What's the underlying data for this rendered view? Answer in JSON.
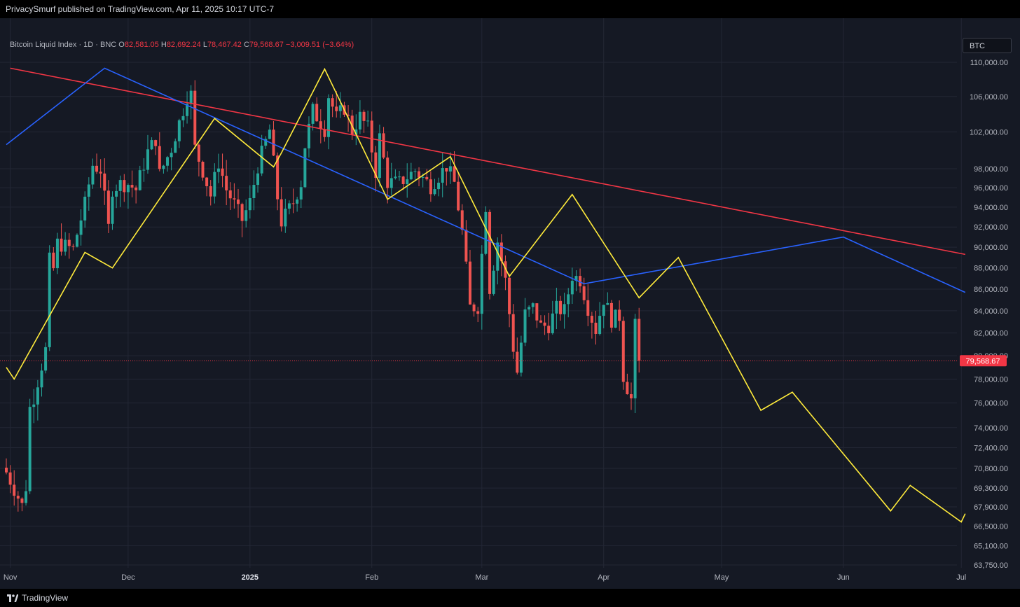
{
  "header": {
    "published": "PrivacySmurf published on TradingView.com, Apr 11, 2025 10:17 UTC-7"
  },
  "legend": {
    "name": "Bitcoin Liquid Index · 1D · BNC",
    "o_label": "O",
    "o": "82,581.05",
    "h_label": "H",
    "h": "82,692.24",
    "l_label": "L",
    "l": "78,467.42",
    "c_label": "C",
    "c": "79,568.67",
    "change": "−3,009.51 (−3.64%)"
  },
  "symbol_button": {
    "label": "BTC"
  },
  "footer": {
    "brand": "TradingView"
  },
  "colors": {
    "up": "#26a69a",
    "down": "#ef5350",
    "yellow": "#ffeb3b",
    "blue": "#2962ff",
    "red_line": "#f23645",
    "price_tag": "#f23645"
  },
  "chart_data": {
    "type": "candlestick",
    "y_scale": "log",
    "y_ticks": [
      {
        "v": 110000,
        "label": "110,000.00"
      },
      {
        "v": 106000,
        "label": "106,000.00"
      },
      {
        "v": 102000,
        "label": "102,000.00"
      },
      {
        "v": 98000,
        "label": "98,000.00"
      },
      {
        "v": 96000,
        "label": "96,000.00"
      },
      {
        "v": 94000,
        "label": "94,000.00"
      },
      {
        "v": 92000,
        "label": "92,000.00"
      },
      {
        "v": 90000,
        "label": "90,000.00"
      },
      {
        "v": 88000,
        "label": "88,000.00"
      },
      {
        "v": 86000,
        "label": "86,000.00"
      },
      {
        "v": 84000,
        "label": "84,000.00"
      },
      {
        "v": 82000,
        "label": "82,000.00"
      },
      {
        "v": 80000,
        "label": "80,000.00"
      },
      {
        "v": 78000,
        "label": "78,000.00"
      },
      {
        "v": 76000,
        "label": "76,000.00"
      },
      {
        "v": 74000,
        "label": "74,000.00"
      },
      {
        "v": 72400,
        "label": "72,400.00"
      },
      {
        "v": 70800,
        "label": "70,800.00"
      },
      {
        "v": 69300,
        "label": "69,300.00"
      },
      {
        "v": 67900,
        "label": "67,900.00"
      },
      {
        "v": 66500,
        "label": "66,500.00"
      },
      {
        "v": 65100,
        "label": "65,100.00"
      },
      {
        "v": 63750,
        "label": "63,750.00"
      }
    ],
    "x_ticks": [
      {
        "date": "2024-11-01",
        "label": "Nov",
        "bold": false
      },
      {
        "date": "2024-12-01",
        "label": "Dec",
        "bold": false
      },
      {
        "date": "2025-01-01",
        "label": "2025",
        "bold": true
      },
      {
        "date": "2025-02-01",
        "label": "Feb",
        "bold": false
      },
      {
        "date": "2025-03-01",
        "label": "Mar",
        "bold": false
      },
      {
        "date": "2025-04-01",
        "label": "Apr",
        "bold": false
      },
      {
        "date": "2025-05-01",
        "label": "May",
        "bold": false
      },
      {
        "date": "2025-06-01",
        "label": "Jun",
        "bold": false
      },
      {
        "date": "2025-07-01",
        "label": "Jul",
        "bold": false
      }
    ],
    "last_price": {
      "value": 79568.67,
      "label": "79,568.67"
    },
    "anchors": [
      [
        "2024-10-31",
        70500
      ],
      [
        "2024-11-04",
        68000
      ],
      [
        "2024-11-05",
        69400
      ],
      [
        "2024-11-06",
        75600
      ],
      [
        "2024-11-07",
        76500
      ],
      [
        "2024-11-10",
        80500
      ],
      [
        "2024-11-11",
        88700
      ],
      [
        "2024-11-12",
        87900
      ],
      [
        "2024-11-13",
        90400
      ],
      [
        "2024-11-17",
        89800
      ],
      [
        "2024-11-20",
        94300
      ],
      [
        "2024-11-22",
        98400
      ],
      [
        "2024-11-24",
        97900
      ],
      [
        "2024-11-26",
        91900
      ],
      [
        "2024-11-27",
        95900
      ],
      [
        "2024-11-29",
        96400
      ],
      [
        "2024-12-01",
        96400
      ],
      [
        "2024-12-03",
        95800
      ],
      [
        "2024-12-05",
        98500
      ],
      [
        "2024-12-06",
        99800
      ],
      [
        "2024-12-08",
        101200
      ],
      [
        "2024-12-09",
        97400
      ],
      [
        "2024-12-12",
        100200
      ],
      [
        "2024-12-15",
        104500
      ],
      [
        "2024-12-16",
        106100
      ],
      [
        "2024-12-17",
        106200
      ],
      [
        "2024-12-18",
        100200
      ],
      [
        "2024-12-20",
        97800
      ],
      [
        "2024-12-22",
        95200
      ],
      [
        "2024-12-24",
        98700
      ],
      [
        "2024-12-26",
        95800
      ],
      [
        "2024-12-28",
        94300
      ],
      [
        "2024-12-30",
        92700
      ],
      [
        "2025-01-01",
        94500
      ],
      [
        "2025-01-03",
        98300
      ],
      [
        "2025-01-06",
        102200
      ],
      [
        "2025-01-08",
        95000
      ],
      [
        "2025-01-09",
        92500
      ],
      [
        "2025-01-12",
        94500
      ],
      [
        "2025-01-14",
        96500
      ],
      [
        "2025-01-15",
        100500
      ],
      [
        "2025-01-17",
        104400
      ],
      [
        "2025-01-20",
        102300
      ],
      [
        "2025-01-21",
        106100
      ],
      [
        "2025-01-23",
        103600
      ],
      [
        "2025-01-25",
        104700
      ],
      [
        "2025-01-27",
        102100
      ],
      [
        "2025-01-29",
        103700
      ],
      [
        "2025-01-31",
        102400
      ],
      [
        "2025-02-02",
        97700
      ],
      [
        "2025-02-03",
        101400
      ],
      [
        "2025-02-05",
        96600
      ],
      [
        "2025-02-08",
        96500
      ],
      [
        "2025-02-12",
        97800
      ],
      [
        "2025-02-16",
        96200
      ],
      [
        "2025-02-20",
        98300
      ],
      [
        "2025-02-22",
        96500
      ],
      [
        "2025-02-24",
        91500
      ],
      [
        "2025-02-26",
        84300
      ],
      [
        "2025-02-28",
        84400
      ],
      [
        "2025-03-02",
        94200
      ],
      [
        "2025-03-03",
        86100
      ],
      [
        "2025-03-05",
        90600
      ],
      [
        "2025-03-07",
        86800
      ],
      [
        "2025-03-09",
        80700
      ],
      [
        "2025-03-10",
        78600
      ],
      [
        "2025-03-12",
        83700
      ],
      [
        "2025-03-14",
        84300
      ],
      [
        "2025-03-16",
        82600
      ],
      [
        "2025-03-18",
        82700
      ],
      [
        "2025-03-20",
        84200
      ],
      [
        "2025-03-22",
        84000
      ],
      [
        "2025-03-24",
        87300
      ],
      [
        "2025-03-26",
        86900
      ],
      [
        "2025-03-28",
        84300
      ],
      [
        "2025-03-30",
        82300
      ],
      [
        "2025-04-01",
        85100
      ],
      [
        "2025-04-03",
        83200
      ],
      [
        "2025-04-05",
        83500
      ],
      [
        "2025-04-06",
        78300
      ],
      [
        "2025-04-08",
        76300
      ],
      [
        "2025-04-09",
        82600
      ],
      [
        "2025-04-10",
        79568.67
      ]
    ],
    "drawings": {
      "yellow_path": [
        [
          "2024-10-31",
          79000
        ],
        [
          "2024-11-02",
          78000
        ],
        [
          "2024-11-20",
          89500
        ],
        [
          "2024-11-27",
          88000
        ],
        [
          "2024-12-23",
          103500
        ],
        [
          "2025-01-07",
          98200
        ],
        [
          "2025-01-09",
          99700
        ],
        [
          "2025-01-20",
          109200
        ],
        [
          "2025-02-05",
          94800
        ],
        [
          "2025-02-21",
          99300
        ],
        [
          "2025-03-08",
          87200
        ],
        [
          "2025-03-24",
          95300
        ],
        [
          "2025-04-10",
          85200
        ],
        [
          "2025-04-20",
          89000
        ],
        [
          "2025-05-11",
          75400
        ],
        [
          "2025-05-19",
          76900
        ],
        [
          "2025-06-13",
          67600
        ],
        [
          "2025-06-18",
          69500
        ],
        [
          "2025-07-01",
          66800
        ],
        [
          "2025-07-02",
          67400
        ]
      ],
      "blue_path": [
        [
          "2024-10-31",
          100600
        ],
        [
          "2024-11-25",
          109300
        ],
        [
          "2025-03-27",
          86500
        ],
        [
          "2025-06-01",
          91000
        ],
        [
          "2025-07-02",
          85700
        ]
      ],
      "red_line": [
        [
          "2024-11-01",
          109300
        ],
        [
          "2025-07-02",
          89300
        ]
      ]
    }
  }
}
